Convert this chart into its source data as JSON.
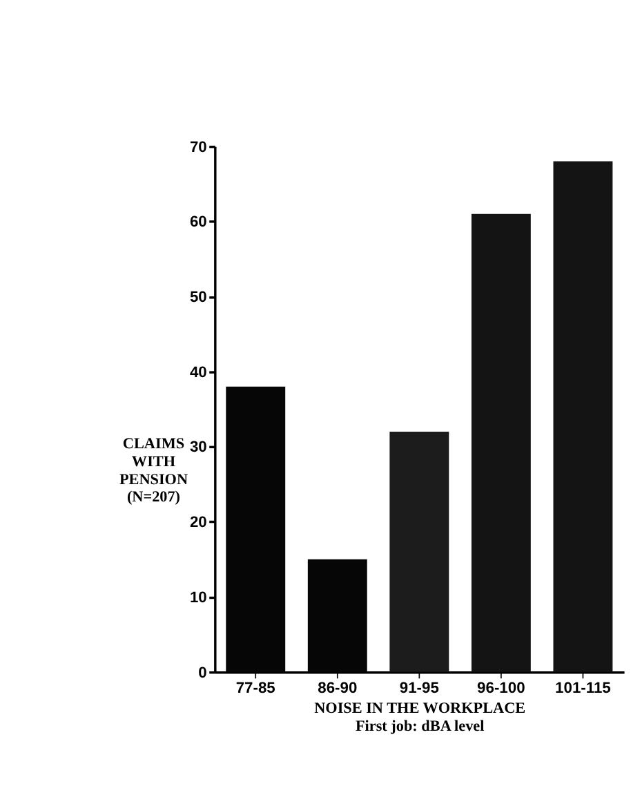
{
  "chart_data": {
    "type": "bar",
    "categories": [
      "77-85",
      "86-90",
      "91-95",
      "96-100",
      "101-115"
    ],
    "values": [
      38,
      15,
      32,
      61,
      68
    ],
    "colors": [
      "#060606",
      "#060606",
      "#1c1c1c",
      "#141414",
      "#141414"
    ],
    "xlabel": "NOISE IN THE WORKPLACE\nFirst job: dBA level",
    "ylabel": "CLAIMS\nWITH\nPENSION\n(N=207)",
    "ylim": [
      0,
      70
    ],
    "yticks": [
      0,
      10,
      20,
      30,
      40,
      50,
      60,
      70
    ],
    "grid": false
  }
}
